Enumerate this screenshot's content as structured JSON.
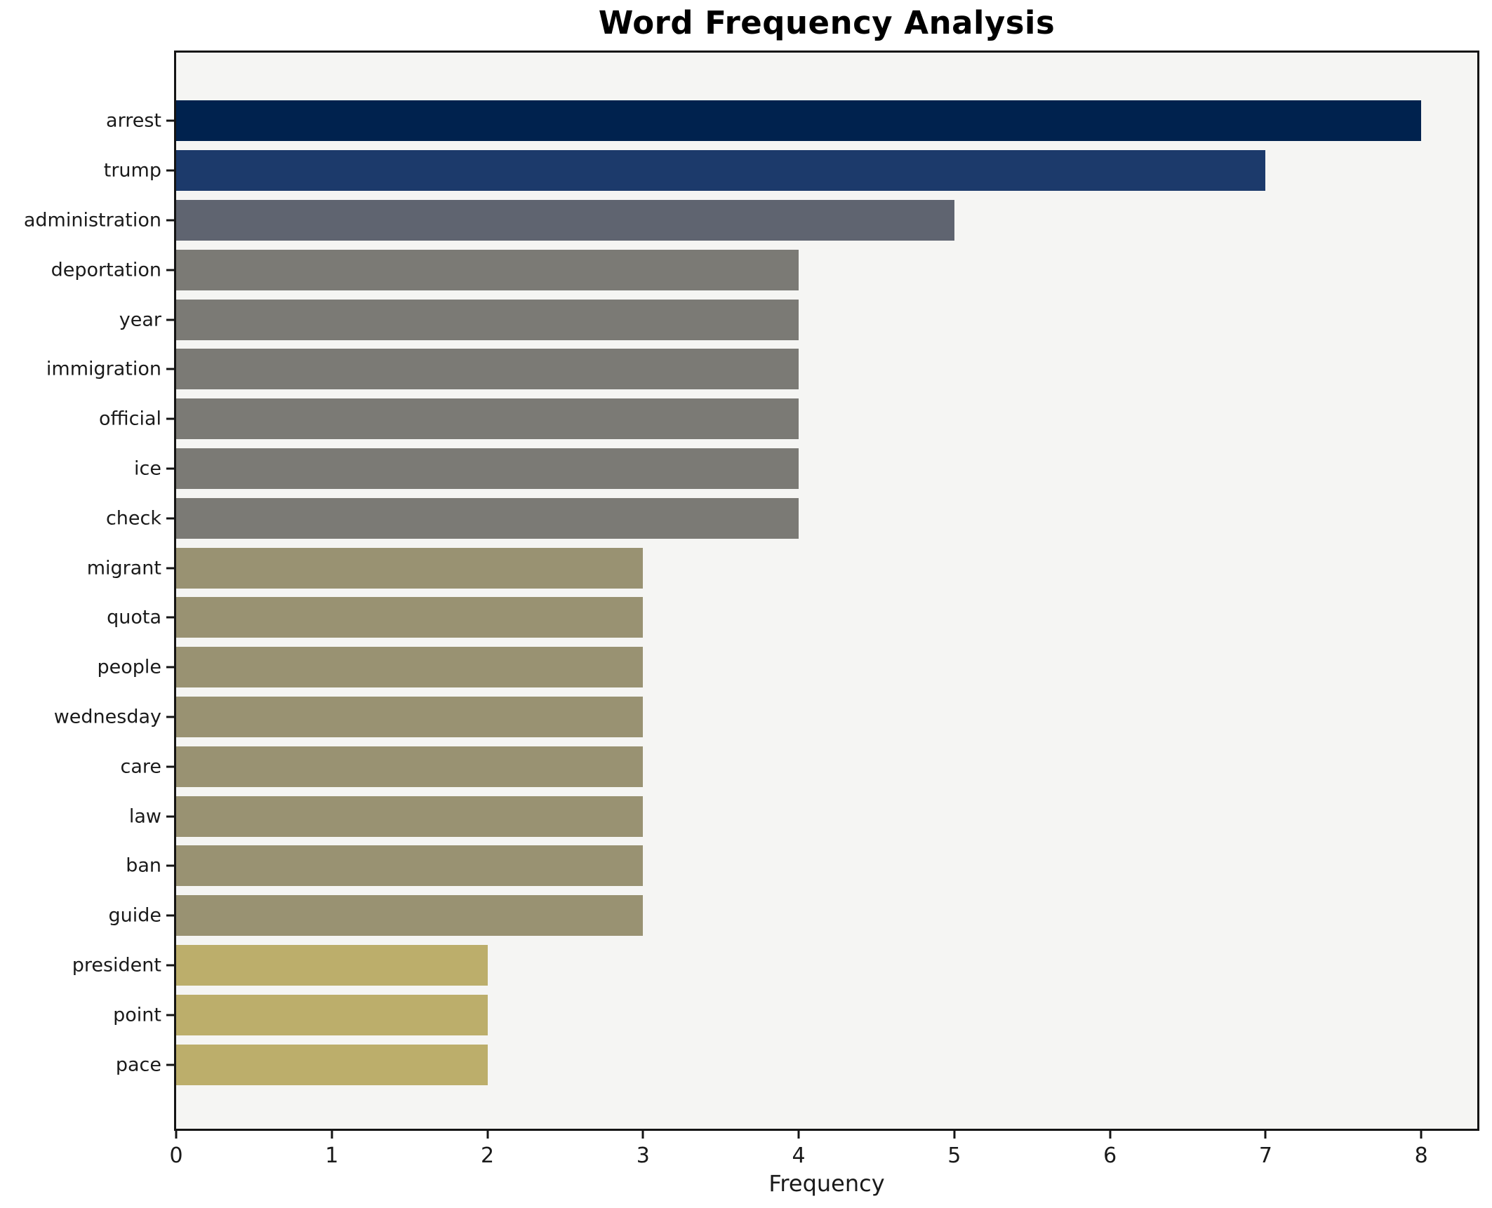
{
  "chart_data": {
    "type": "bar",
    "orientation": "horizontal",
    "title": "Word Frequency Analysis",
    "xlabel": "Frequency",
    "ylabel": "",
    "categories": [
      "arrest",
      "trump",
      "administration",
      "deportation",
      "year",
      "immigration",
      "official",
      "ice",
      "check",
      "migrant",
      "quota",
      "people",
      "wednesday",
      "care",
      "law",
      "ban",
      "guide",
      "president",
      "point",
      "pace"
    ],
    "values": [
      8,
      7,
      5,
      4,
      4,
      4,
      4,
      4,
      4,
      3,
      3,
      3,
      3,
      3,
      3,
      3,
      3,
      2,
      2,
      2
    ],
    "bar_colors": [
      "#00224e",
      "#1c3a6b",
      "#5f6470",
      "#7b7a75",
      "#7b7a75",
      "#7b7a75",
      "#7b7a75",
      "#7b7a75",
      "#7b7a75",
      "#999272",
      "#999272",
      "#999272",
      "#999272",
      "#999272",
      "#999272",
      "#999272",
      "#999272",
      "#bcae6b",
      "#bcae6b",
      "#bcae6b"
    ],
    "x_ticks": [
      0,
      1,
      2,
      3,
      4,
      5,
      6,
      7,
      8
    ],
    "xlim": [
      0,
      8.36
    ],
    "grid": false,
    "legend": "none",
    "plot_background": "#f5f5f3",
    "figure_background": "#ffffff",
    "axis_color": "#141414",
    "text_color": "#1a1a1a"
  }
}
